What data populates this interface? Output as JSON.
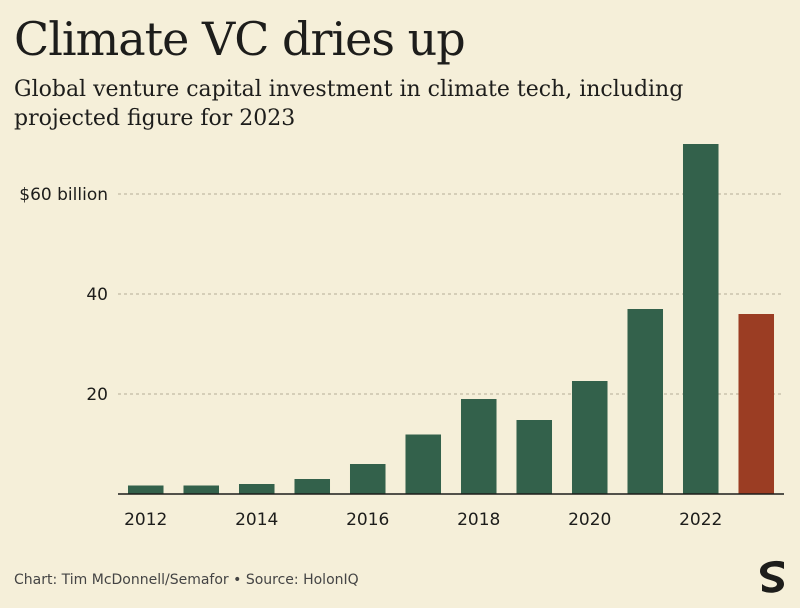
{
  "chart_data": {
    "type": "bar",
    "title": "Climate VC dries up",
    "subtitle": "Global venture capital investment in climate tech, including projected figure for 2023",
    "categories": [
      "2012",
      "2013",
      "2014",
      "2015",
      "2016",
      "2017",
      "2018",
      "2019",
      "2020",
      "2021",
      "2022",
      "2023"
    ],
    "values": [
      1.7,
      1.7,
      2.0,
      3.0,
      6.0,
      11.9,
      19.0,
      14.8,
      22.6,
      37.0,
      70.0,
      36.0
    ],
    "projected": [
      false,
      false,
      false,
      false,
      false,
      false,
      false,
      false,
      false,
      false,
      false,
      true
    ],
    "x_tick_labels": [
      "2012",
      "2014",
      "2016",
      "2018",
      "2020",
      "2022"
    ],
    "y_ticks": [
      {
        "value": 20,
        "label": "20"
      },
      {
        "value": 40,
        "label": "40"
      },
      {
        "value": 60,
        "label": "$60 billion"
      }
    ],
    "ylim": [
      0,
      70
    ],
    "grid": "horizontal dashed",
    "colors": {
      "actual": "#33614b",
      "projected": "#9b3d23",
      "grid": "#b5ae98",
      "axis": "#1d1d1b",
      "background": "#f5efd9"
    }
  },
  "footer": {
    "credit": "Chart: Tim McDonnell/Semafor • Source: HolonIQ"
  },
  "logo": {
    "icon": "semafor-s-logo-icon"
  }
}
